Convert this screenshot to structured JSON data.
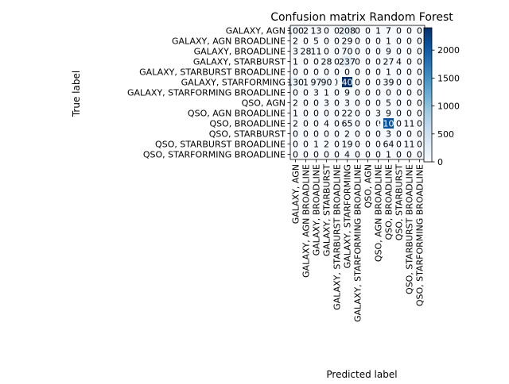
{
  "chart_data": {
    "type": "heatmap",
    "title": "Confusion matrix Random Forest",
    "xlabel": "Predicted label",
    "ylabel": "True label",
    "labels": [
      "GALAXY, AGN",
      "GALAXY, AGN BROADLINE",
      "GALAXY, BROADLINE",
      "GALAXY, STARBURST",
      "GALAXY, STARBURST BROADLINE",
      "GALAXY, STARFORMING",
      "GALAXY, STARFORMING BROADLINE",
      "QSO, AGN",
      "QSO, AGN BROADLINE",
      "QSO, BROADLINE",
      "QSO, STARBURST",
      "QSO, STARBURST BROADLINE",
      "QSO, STARFORMING BROADLINE"
    ],
    "matrix": [
      [
        100,
        2,
        13,
        0,
        0,
        208,
        0,
        0,
        1,
        7,
        0,
        0,
        0
      ],
      [
        2,
        0,
        5,
        0,
        0,
        29,
        0,
        0,
        0,
        1,
        0,
        0,
        0
      ],
      [
        3,
        28,
        11,
        0,
        0,
        70,
        0,
        0,
        0,
        9,
        0,
        0,
        0
      ],
      [
        1,
        0,
        0,
        28,
        0,
        237,
        0,
        0,
        0,
        27,
        4,
        0,
        0
      ],
      [
        0,
        0,
        0,
        0,
        0,
        0,
        0,
        0,
        0,
        1,
        0,
        0,
        0
      ],
      [
        130,
        1,
        97,
        90,
        1,
        2400,
        0,
        0,
        0,
        39,
        0,
        0,
        0
      ],
      [
        0,
        0,
        3,
        1,
        0,
        9,
        0,
        0,
        0,
        0,
        0,
        0,
        0
      ],
      [
        2,
        0,
        0,
        3,
        0,
        3,
        0,
        0,
        0,
        5,
        0,
        0,
        0
      ],
      [
        1,
        0,
        0,
        0,
        0,
        22,
        0,
        0,
        3,
        9,
        0,
        0,
        0
      ],
      [
        2,
        0,
        0,
        4,
        0,
        65,
        0,
        0,
        0,
        2100,
        0,
        11,
        0
      ],
      [
        0,
        0,
        0,
        0,
        0,
        2,
        0,
        0,
        0,
        3,
        0,
        0,
        0
      ],
      [
        0,
        0,
        1,
        2,
        0,
        19,
        0,
        0,
        0,
        64,
        0,
        11,
        0
      ],
      [
        0,
        0,
        0,
        0,
        0,
        4,
        0,
        0,
        0,
        1,
        0,
        0,
        0
      ]
    ],
    "colormap": "Blues",
    "vmin": 0,
    "vmax": 2400,
    "colorbar_ticks": [
      "0",
      "500",
      "1000",
      "1500",
      "2000"
    ],
    "grid": false
  }
}
